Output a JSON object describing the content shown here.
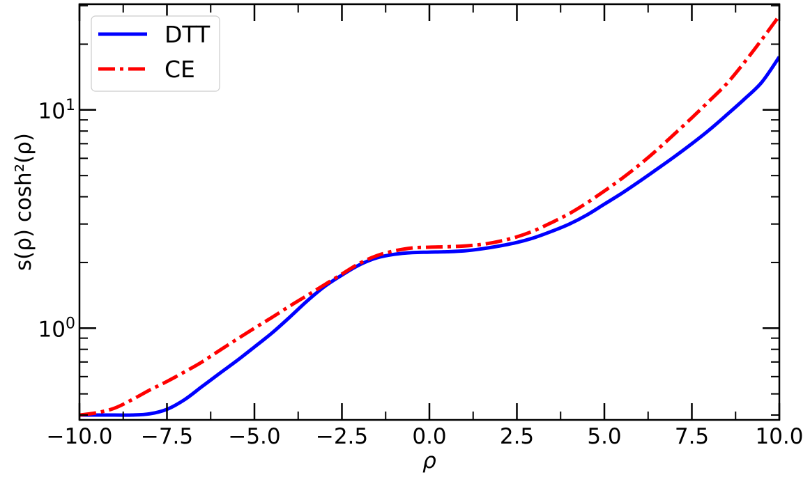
{
  "chart_data": {
    "type": "line",
    "xlabel": "ρ",
    "ylabel": "s(ρ) cosh²(ρ)",
    "xlim": [
      -10,
      10
    ],
    "ylim": [
      0.38,
      30.5
    ],
    "yscale": "log",
    "grid": false,
    "legend_position": "top-left",
    "x_ticks": [
      -10,
      -7.5,
      -5,
      -2.5,
      0,
      2.5,
      5,
      7.5,
      10
    ],
    "x_tick_labels": [
      "−10.0",
      "−7.5",
      "−5.0",
      "−2.5",
      "0.0",
      "2.5",
      "5.0",
      "7.5",
      "10.0"
    ],
    "y_ticks": [
      {
        "value": 1,
        "base": "10",
        "exp": "0"
      },
      {
        "value": 10,
        "base": "10",
        "exp": "1"
      }
    ],
    "series": [
      {
        "name": "DTT",
        "color": "#0000ff",
        "style": "solid",
        "x": [
          -10,
          -9,
          -8.5,
          -8,
          -7.5,
          -7,
          -6.5,
          -6,
          -5.5,
          -5,
          -4.5,
          -4,
          -3.5,
          -3,
          -2.5,
          -2,
          -1.5,
          -1,
          -0.5,
          0,
          0.5,
          1,
          1.5,
          2,
          2.5,
          3,
          3.5,
          4,
          4.5,
          5,
          5.5,
          6,
          6.5,
          7,
          7.5,
          8,
          8.5,
          9,
          9.5,
          10
        ],
        "y": [
          0.4,
          0.4,
          0.4,
          0.405,
          0.425,
          0.47,
          0.54,
          0.62,
          0.71,
          0.82,
          0.95,
          1.12,
          1.33,
          1.55,
          1.75,
          1.95,
          2.1,
          2.18,
          2.22,
          2.23,
          2.24,
          2.26,
          2.31,
          2.38,
          2.47,
          2.6,
          2.78,
          3.0,
          3.3,
          3.7,
          4.15,
          4.7,
          5.35,
          6.1,
          7.0,
          8.1,
          9.5,
          11.2,
          13.4,
          17.5
        ]
      },
      {
        "name": "CE",
        "color": "#ff0000",
        "style": "dashdot",
        "x": [
          -10,
          -9.5,
          -9,
          -8.5,
          -8,
          -7.5,
          -7,
          -6.5,
          -6,
          -5.5,
          -5,
          -4.5,
          -4,
          -3.5,
          -3,
          -2.5,
          -2,
          -1.5,
          -1,
          -0.5,
          0,
          0.5,
          1,
          1.5,
          2,
          2.5,
          3,
          3.5,
          4,
          4.5,
          5,
          5.5,
          6,
          6.5,
          7,
          7.5,
          8,
          8.5,
          9,
          9.5,
          10
        ],
        "y": [
          0.4,
          0.41,
          0.43,
          0.47,
          0.52,
          0.57,
          0.63,
          0.7,
          0.79,
          0.89,
          1.0,
          1.12,
          1.26,
          1.41,
          1.58,
          1.77,
          1.98,
          2.15,
          2.26,
          2.33,
          2.35,
          2.36,
          2.38,
          2.42,
          2.5,
          2.62,
          2.8,
          3.05,
          3.35,
          3.75,
          4.25,
          4.85,
          5.6,
          6.55,
          7.75,
          9.2,
          11.0,
          13.2,
          16.5,
          21.0,
          27.0
        ]
      }
    ]
  }
}
